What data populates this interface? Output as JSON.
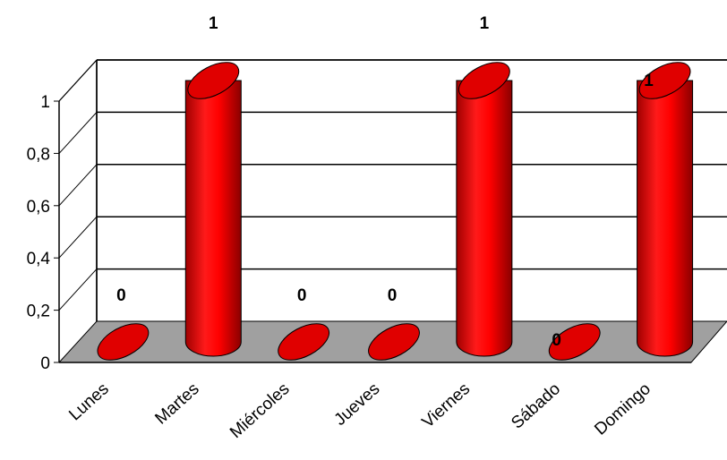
{
  "chart_data": {
    "type": "bar",
    "style": "3d-cylinder",
    "title": "",
    "xlabel": "",
    "ylabel": "",
    "categories": [
      "Lunes",
      "Martes",
      "Miércoles",
      "Jueves",
      "Viernes",
      "Sábado",
      "Domingo"
    ],
    "values": [
      0,
      1,
      0,
      0,
      1,
      0,
      1
    ],
    "data_labels": [
      "0",
      "1",
      "0",
      "0",
      "1",
      "0",
      "1"
    ],
    "ylim": [
      0,
      1
    ],
    "yticks": [
      0,
      0.2,
      0.4,
      0.6,
      0.8,
      1
    ],
    "ytick_labels": [
      "0",
      "0,2",
      "0,4",
      "0,6",
      "0,8",
      "1"
    ],
    "grid": true,
    "legend": "none",
    "colors": {
      "bar": "#ff0000",
      "bar_dark": "#b30000",
      "floor": "#a0a0a0",
      "gridline": "#000000"
    }
  }
}
